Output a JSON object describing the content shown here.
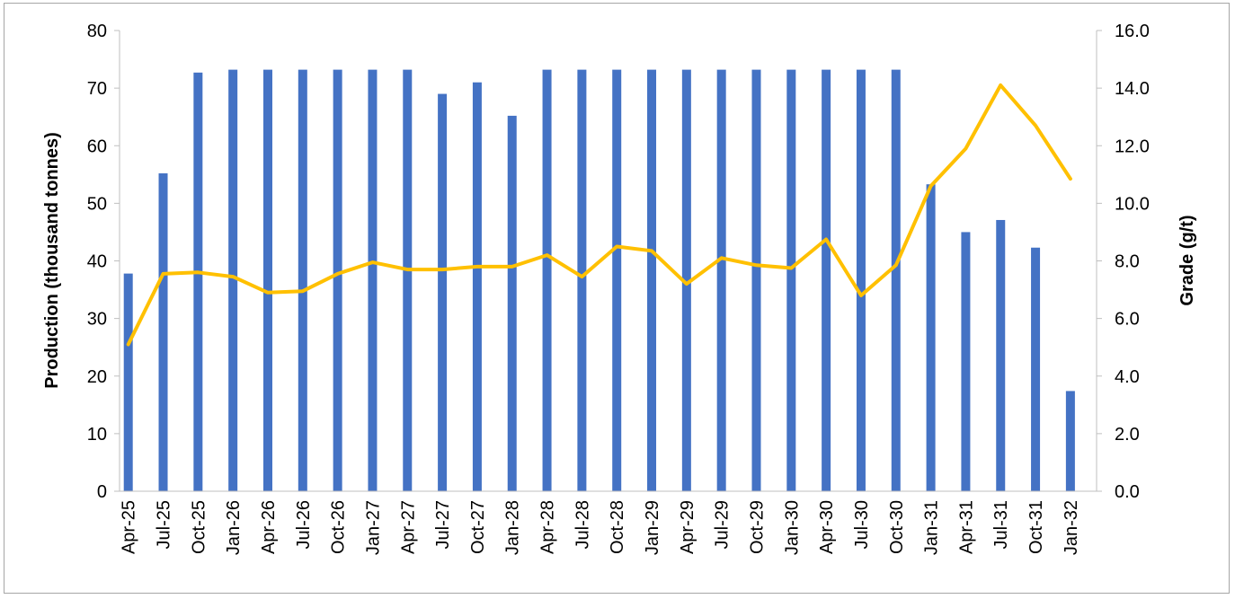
{
  "chart_data": {
    "type": "bar",
    "title": "",
    "xlabel": "",
    "ylabel": "Production  (thousand tonnes)",
    "y2label": "Grade (g/t)",
    "ylim": [
      0,
      80
    ],
    "y2lim": [
      0,
      16
    ],
    "yticks": [
      "0",
      "10",
      "20",
      "30",
      "40",
      "50",
      "60",
      "70",
      "80"
    ],
    "y2ticks": [
      "0.0",
      "2.0",
      "4.0",
      "6.0",
      "8.0",
      "10.0",
      "12.0",
      "14.0",
      "16.0"
    ],
    "grid": false,
    "legend": "none",
    "categories": [
      "Apr-25",
      "Jul-25",
      "Oct-25",
      "Jan-26",
      "Apr-26",
      "Jul-26",
      "Oct-26",
      "Jan-27",
      "Apr-27",
      "Jul-27",
      "Oct-27",
      "Jan-28",
      "Apr-28",
      "Jul-28",
      "Oct-28",
      "Jan-29",
      "Apr-29",
      "Jul-29",
      "Oct-29",
      "Jan-30",
      "Apr-30",
      "Jul-30",
      "Oct-30",
      "Jan-31",
      "Apr-31",
      "Jul-31",
      "Oct-31",
      "Jan-32"
    ],
    "series": [
      {
        "kind": "bar",
        "axis": "left",
        "color": "#4472c4",
        "values": [
          37.8,
          55.2,
          72.7,
          73.2,
          73.2,
          73.2,
          73.2,
          73.2,
          73.2,
          69.0,
          71.0,
          65.2,
          73.2,
          73.2,
          73.2,
          73.2,
          73.2,
          73.2,
          73.2,
          73.2,
          73.2,
          73.2,
          73.2,
          53.3,
          45.0,
          47.1,
          42.3,
          17.4
        ]
      },
      {
        "kind": "line",
        "axis": "right",
        "color": "#ffc000",
        "values": [
          5.1,
          7.55,
          7.6,
          7.45,
          6.9,
          6.95,
          7.55,
          7.95,
          7.7,
          7.7,
          7.8,
          7.8,
          8.2,
          7.45,
          8.5,
          8.35,
          7.2,
          8.1,
          7.85,
          7.75,
          8.75,
          6.8,
          7.85,
          10.6,
          11.9,
          14.1,
          12.7,
          10.85
        ]
      }
    ]
  }
}
